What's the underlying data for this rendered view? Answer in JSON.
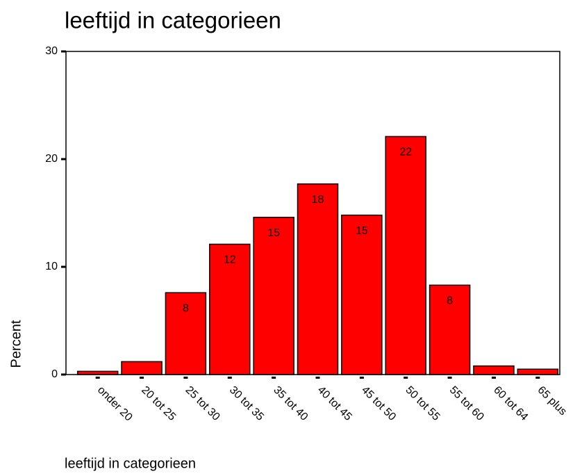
{
  "chart_data": {
    "type": "bar",
    "title": "leeftijd in categorieen",
    "xlabel": "leeftijd in categorieen",
    "ylabel": "Percent",
    "categories": [
      "onder 20",
      "20 tot 25",
      "25 tot 30",
      "30 tot 35",
      "35 tot 40",
      "40 tot 45",
      "45 tot 50",
      "50 tot 55",
      "55 tot 60",
      "60 tot 64",
      "65 plus"
    ],
    "values": [
      0.3,
      1.2,
      7.6,
      12.1,
      14.6,
      17.7,
      14.8,
      22.1,
      8.3,
      0.8,
      0.5
    ],
    "value_labels": [
      null,
      null,
      "8",
      "12",
      "15",
      "18",
      "15",
      "22",
      "8",
      null,
      null
    ],
    "color": "#ff0000",
    "ylim": [
      0,
      30
    ],
    "yticks": [
      0,
      10,
      20,
      30
    ],
    "grid": false
  }
}
